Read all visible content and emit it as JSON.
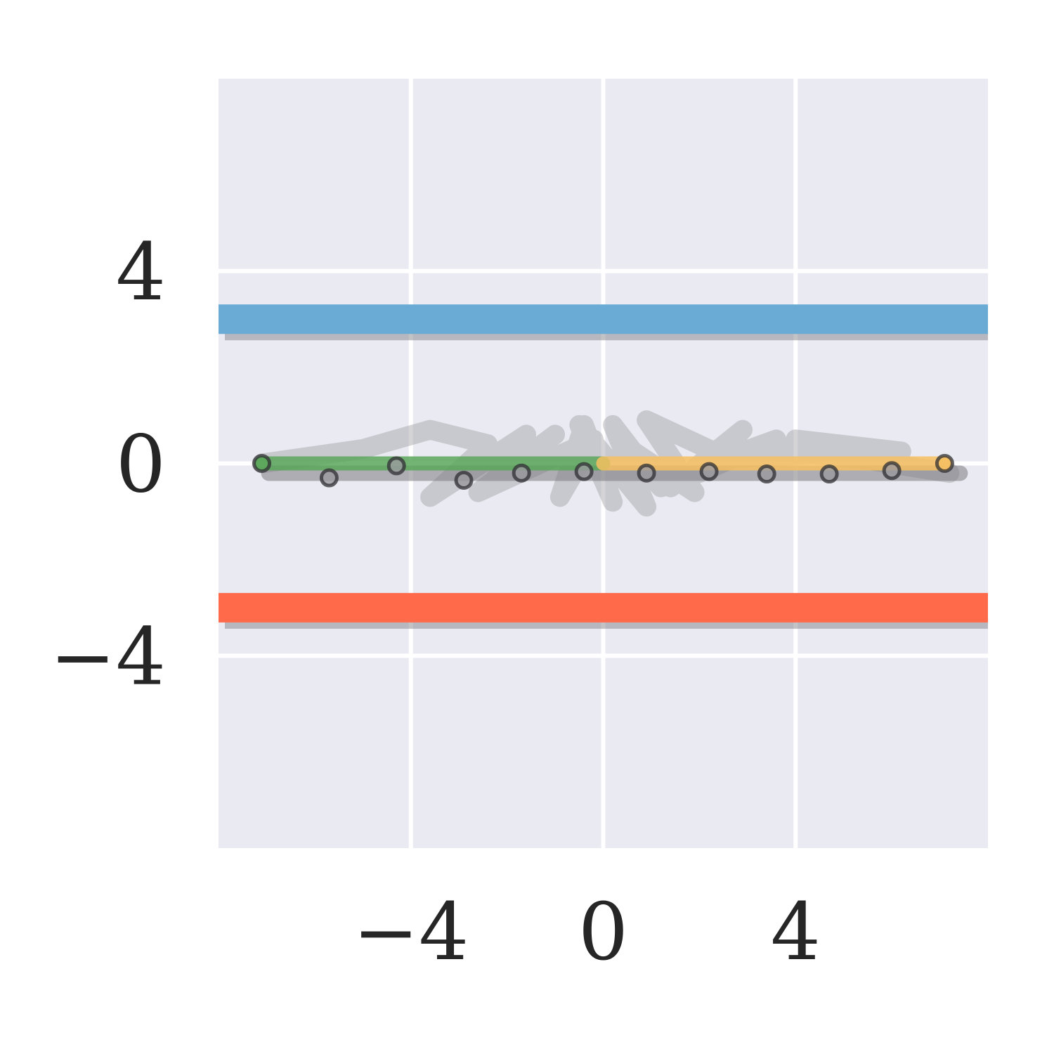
{
  "chart_data": {
    "type": "line",
    "title": "",
    "xlabel": "",
    "ylabel": "",
    "xlim": [
      -8,
      8
    ],
    "ylim": [
      -8,
      8
    ],
    "grid": true,
    "x_ticks": [
      {
        "value": -4,
        "label": "−4"
      },
      {
        "value": 0,
        "label": "0"
      },
      {
        "value": 4,
        "label": "4"
      }
    ],
    "y_ticks": [
      {
        "value": 4,
        "label": "4"
      },
      {
        "value": 0,
        "label": "0"
      },
      {
        "value": -4,
        "label": "−4"
      }
    ],
    "colors": {
      "background": "#eaeaf2",
      "grid": "#ffffff",
      "upper_band": "#6aabd5",
      "lower_band": "#ff6a4a",
      "left_segment": "#5aa65a",
      "right_segment": "#f6bf60",
      "gray_path": "#a0a0a4",
      "shadow": "#7a7a80"
    },
    "horizontal_bands": [
      {
        "y": 3,
        "color": "upper_band"
      },
      {
        "y": -3,
        "color": "lower_band"
      }
    ],
    "segments": [
      {
        "x": [
          -7.1,
          0
        ],
        "y": [
          0,
          0
        ],
        "color": "left_segment"
      },
      {
        "x": [
          0,
          7.1
        ],
        "y": [
          0,
          0
        ],
        "color": "right_segment"
      }
    ],
    "points": {
      "x": [
        -7.1,
        -5.7,
        -4.3,
        -2.9,
        -1.7,
        -0.4,
        0.9,
        2.2,
        3.4,
        4.7,
        6.0,
        7.1
      ],
      "y": [
        0.0,
        -0.3,
        -0.05,
        -0.35,
        -0.2,
        -0.17,
        -0.2,
        -0.17,
        -0.22,
        -0.22,
        -0.15,
        0.0
      ]
    },
    "gray_path": {
      "x": [
        -7.1,
        -5.0,
        -3.6,
        -2.4,
        -3.6,
        -1.6,
        -2.3,
        -1.0,
        -2.6,
        -0.2,
        -0.9,
        -0.4,
        0.2,
        -0.5,
        0.9,
        0.2,
        1.2,
        0.4,
        1.9,
        0.9,
        2.4,
        1.4,
        2.9,
        2.0,
        3.6,
        2.5,
        4.6,
        3.3,
        5.2,
        4.0,
        6.2,
        5.0,
        7.2
      ],
      "y": [
        0.0,
        0.3,
        0.7,
        0.4,
        -0.7,
        0.6,
        -0.4,
        0.6,
        -0.6,
        0.5,
        -0.7,
        0.8,
        -0.8,
        0.8,
        -0.9,
        0.8,
        -0.5,
        0.4,
        -0.6,
        0.9,
        0.2,
        -0.5,
        0.7,
        -0.2,
        0.5,
        0.1,
        0.2,
        0.3,
        0.1,
        0.5,
        0.25,
        0.15,
        -0.2
      ]
    }
  }
}
